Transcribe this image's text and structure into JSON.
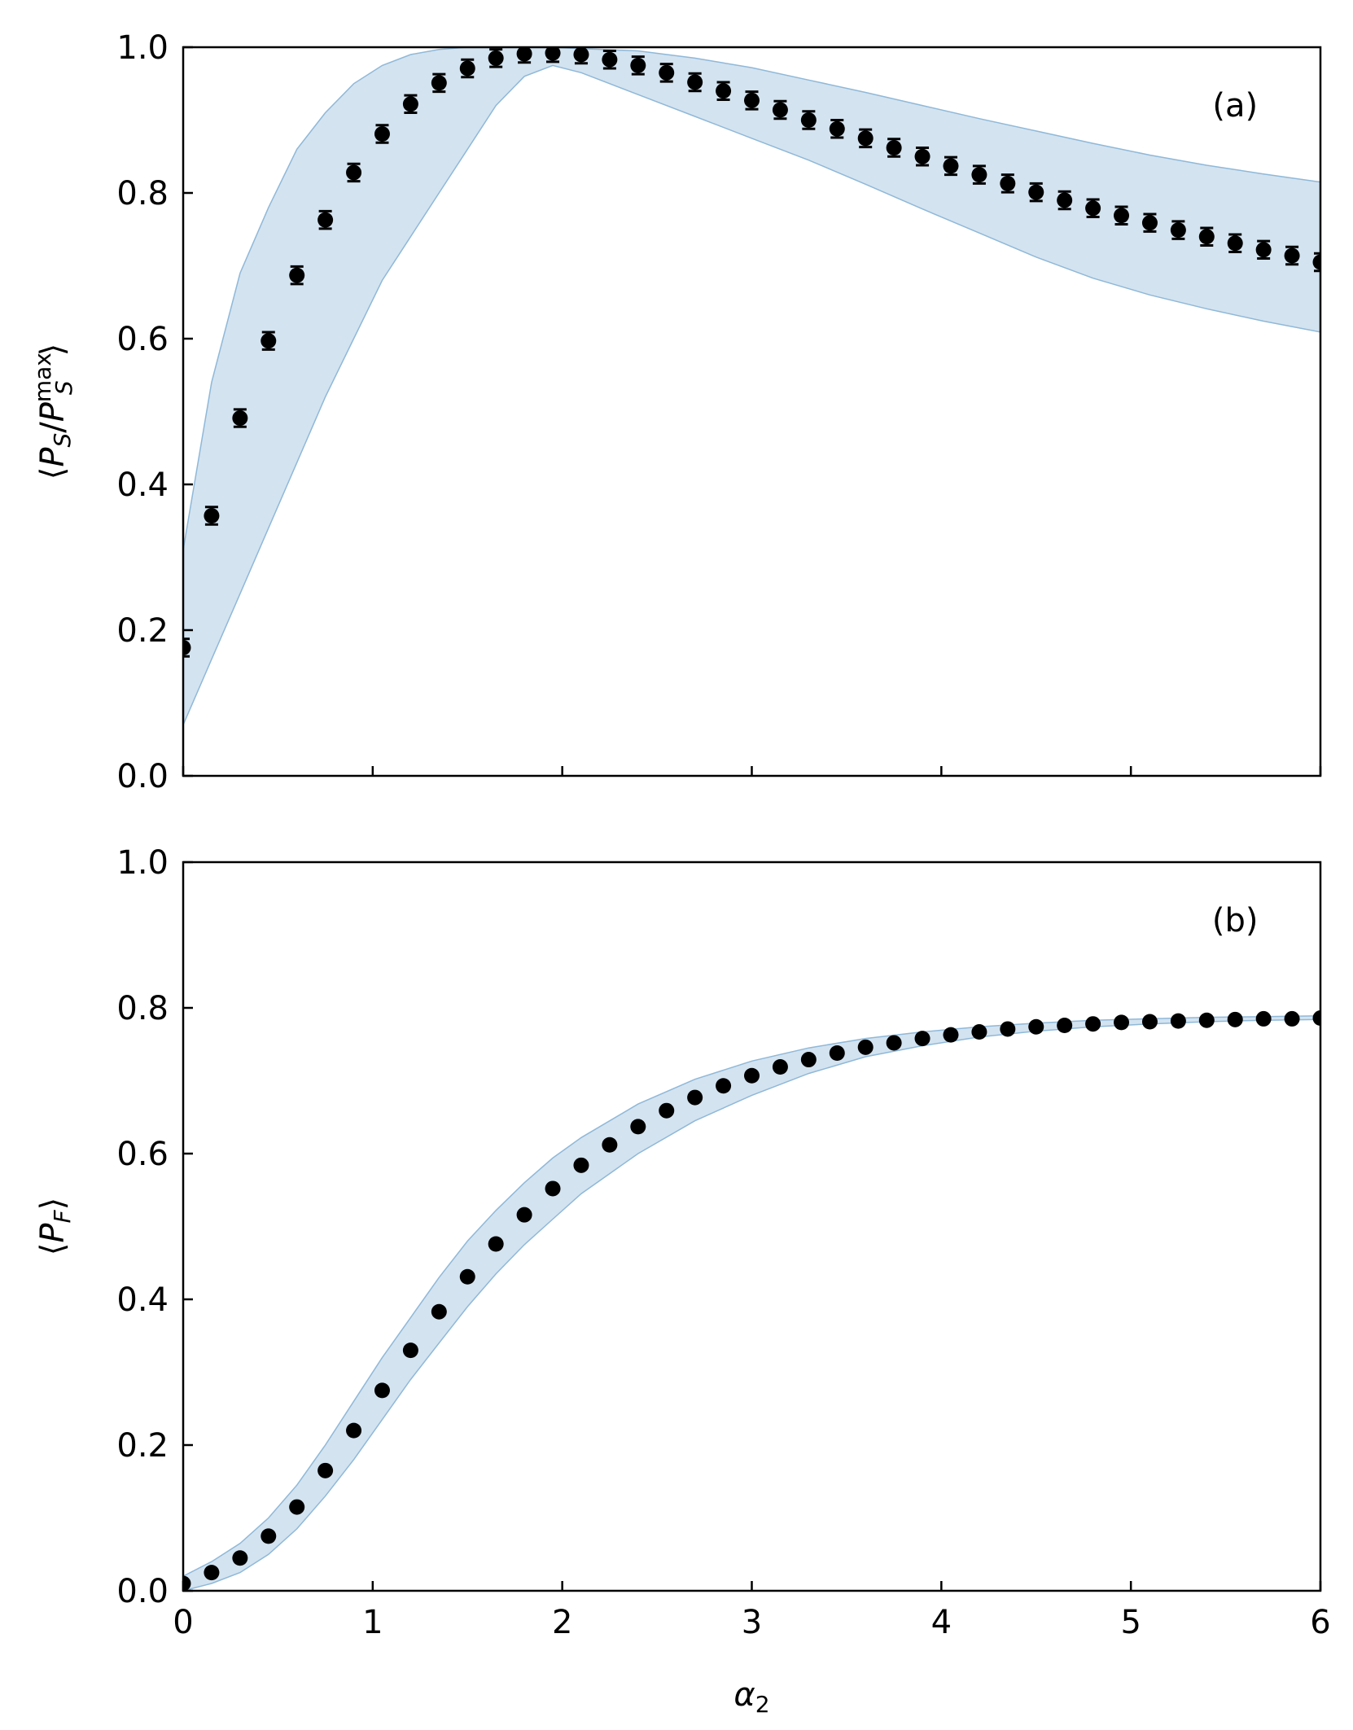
{
  "figure": {
    "xlabel": "α",
    "xlabel_sub": "2",
    "x_tick_labels": [
      "0",
      "1",
      "2",
      "3",
      "4",
      "5",
      "6"
    ]
  },
  "chart_data": [
    {
      "type": "scatter",
      "panel_label": "(a)",
      "ylabel_parts": {
        "open": "⟨",
        "P": "P",
        "S": "S",
        "slash": "/",
        "P2": "P",
        "sup": "max",
        "S2": "S",
        "close": "⟩"
      },
      "xlim": [
        0,
        6
      ],
      "ylim": [
        0,
        1.0
      ],
      "y_tick_labels": [
        "0.0",
        "0.2",
        "0.4",
        "0.6",
        "0.8",
        "1.0"
      ],
      "x_tick_labels_shown": false,
      "marker_color": "#000000",
      "band_color": "#aecce4",
      "error_bars": true,
      "x": [
        0.0,
        0.15,
        0.3,
        0.45,
        0.6,
        0.75,
        0.9,
        1.05,
        1.2,
        1.35,
        1.5,
        1.65,
        1.8,
        1.95,
        2.1,
        2.25,
        2.4,
        2.55,
        2.7,
        2.85,
        3.0,
        3.15,
        3.3,
        3.45,
        3.6,
        3.75,
        3.9,
        4.05,
        4.2,
        4.35,
        4.5,
        4.65,
        4.8,
        4.95,
        5.1,
        5.25,
        5.4,
        5.55,
        5.7,
        5.85,
        6.0
      ],
      "y": [
        0.176,
        0.357,
        0.491,
        0.597,
        0.687,
        0.763,
        0.828,
        0.881,
        0.922,
        0.951,
        0.971,
        0.985,
        0.991,
        0.992,
        0.99,
        0.983,
        0.975,
        0.965,
        0.952,
        0.94,
        0.927,
        0.914,
        0.9,
        0.888,
        0.875,
        0.862,
        0.85,
        0.837,
        0.825,
        0.813,
        0.801,
        0.79,
        0.779,
        0.769,
        0.759,
        0.749,
        0.74,
        0.731,
        0.722,
        0.714,
        0.705
      ],
      "yerr": 0.012,
      "band_x": [
        0.0,
        0.15,
        0.3,
        0.45,
        0.6,
        0.75,
        0.9,
        1.05,
        1.2,
        1.35,
        1.5,
        1.65,
        1.8,
        1.95,
        2.1,
        2.4,
        2.7,
        3.0,
        3.3,
        3.6,
        3.9,
        4.2,
        4.5,
        4.8,
        5.1,
        5.4,
        5.7,
        6.0
      ],
      "band_upper": [
        0.31,
        0.54,
        0.69,
        0.78,
        0.86,
        0.91,
        0.95,
        0.975,
        0.99,
        0.997,
        1.0,
        1.0,
        1.0,
        1.0,
        0.998,
        0.995,
        0.985,
        0.972,
        0.955,
        0.938,
        0.92,
        0.902,
        0.885,
        0.868,
        0.852,
        0.838,
        0.826,
        0.815
      ],
      "band_lower": [
        0.07,
        0.16,
        0.25,
        0.34,
        0.43,
        0.52,
        0.6,
        0.68,
        0.74,
        0.8,
        0.86,
        0.92,
        0.96,
        0.975,
        0.965,
        0.935,
        0.905,
        0.875,
        0.845,
        0.812,
        0.778,
        0.745,
        0.712,
        0.683,
        0.66,
        0.641,
        0.624,
        0.609
      ]
    },
    {
      "type": "scatter",
      "panel_label": "(b)",
      "ylabel_parts": {
        "open": "⟨",
        "P": "P",
        "F": "F",
        "close": "⟩"
      },
      "xlim": [
        0,
        6
      ],
      "ylim": [
        0,
        1.0
      ],
      "y_tick_labels": [
        "0.0",
        "0.2",
        "0.4",
        "0.6",
        "0.8",
        "1.0"
      ],
      "x_tick_labels_shown": true,
      "marker_color": "#000000",
      "band_color": "#aecce4",
      "error_bars": false,
      "x": [
        0.0,
        0.15,
        0.3,
        0.45,
        0.6,
        0.75,
        0.9,
        1.05,
        1.2,
        1.35,
        1.5,
        1.65,
        1.8,
        1.95,
        2.1,
        2.25,
        2.4,
        2.55,
        2.7,
        2.85,
        3.0,
        3.15,
        3.3,
        3.45,
        3.6,
        3.75,
        3.9,
        4.05,
        4.2,
        4.35,
        4.5,
        4.65,
        4.8,
        4.95,
        5.1,
        5.25,
        5.4,
        5.55,
        5.7,
        5.85,
        6.0
      ],
      "y": [
        0.01,
        0.025,
        0.045,
        0.075,
        0.115,
        0.165,
        0.22,
        0.275,
        0.33,
        0.383,
        0.431,
        0.476,
        0.516,
        0.552,
        0.584,
        0.612,
        0.637,
        0.659,
        0.677,
        0.693,
        0.707,
        0.719,
        0.729,
        0.738,
        0.746,
        0.752,
        0.758,
        0.763,
        0.767,
        0.771,
        0.774,
        0.776,
        0.778,
        0.78,
        0.781,
        0.782,
        0.783,
        0.784,
        0.785,
        0.785,
        0.786
      ],
      "band_x": [
        0.0,
        0.15,
        0.3,
        0.45,
        0.6,
        0.75,
        0.9,
        1.05,
        1.2,
        1.35,
        1.5,
        1.65,
        1.8,
        1.95,
        2.1,
        2.4,
        2.7,
        3.0,
        3.3,
        3.6,
        3.9,
        4.2,
        4.5,
        4.8,
        5.1,
        5.4,
        5.7,
        6.0
      ],
      "band_upper": [
        0.02,
        0.04,
        0.065,
        0.1,
        0.145,
        0.2,
        0.26,
        0.32,
        0.375,
        0.43,
        0.48,
        0.522,
        0.56,
        0.594,
        0.622,
        0.668,
        0.702,
        0.727,
        0.745,
        0.758,
        0.767,
        0.774,
        0.779,
        0.783,
        0.785,
        0.787,
        0.788,
        0.789
      ],
      "band_lower": [
        0.0,
        0.01,
        0.025,
        0.05,
        0.085,
        0.13,
        0.18,
        0.235,
        0.29,
        0.34,
        0.39,
        0.435,
        0.475,
        0.51,
        0.545,
        0.6,
        0.645,
        0.68,
        0.71,
        0.733,
        0.748,
        0.76,
        0.768,
        0.774,
        0.778,
        0.781,
        0.783,
        0.784
      ]
    }
  ]
}
